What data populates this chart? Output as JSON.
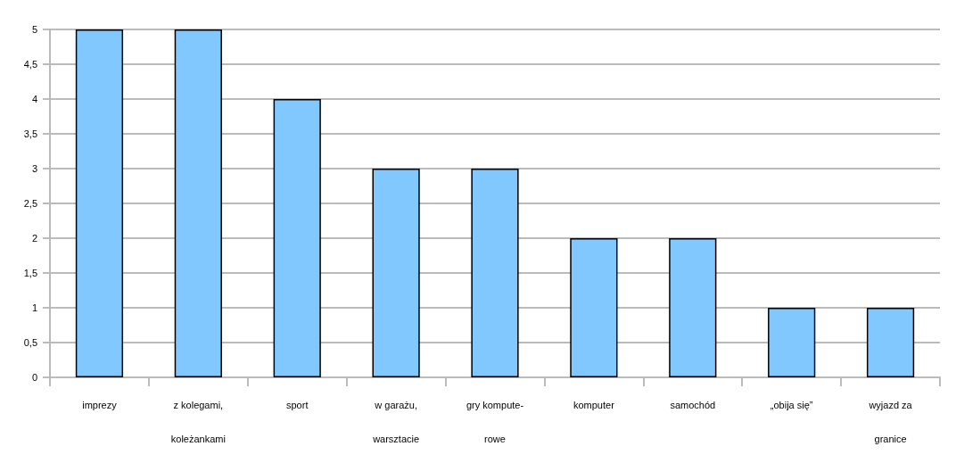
{
  "chart_data": {
    "type": "bar",
    "categories": [
      "imprezy",
      "z kolegami,\nkoleżankami",
      "sport",
      "w garażu,\nwarsztacie",
      "gry kompute-\nrowe",
      "komputer",
      "samochód",
      "„obija się”",
      "wyjazd za\ngranice"
    ],
    "values": [
      5,
      5,
      4,
      3,
      3,
      2,
      2,
      1,
      1
    ],
    "color": "#80c8ff",
    "ylim": [
      0,
      5
    ],
    "yticks": [
      0,
      {
        "value": 0.5,
        "label": "0,5"
      },
      1,
      {
        "value": 1.5,
        "label": "1,5"
      },
      2,
      {
        "value": 2.5,
        "label": "2,5"
      },
      3,
      {
        "value": 3.5,
        "label": "3,5"
      },
      4,
      {
        "value": 4.5,
        "label": "4,5"
      },
      5
    ],
    "grid": "y"
  }
}
